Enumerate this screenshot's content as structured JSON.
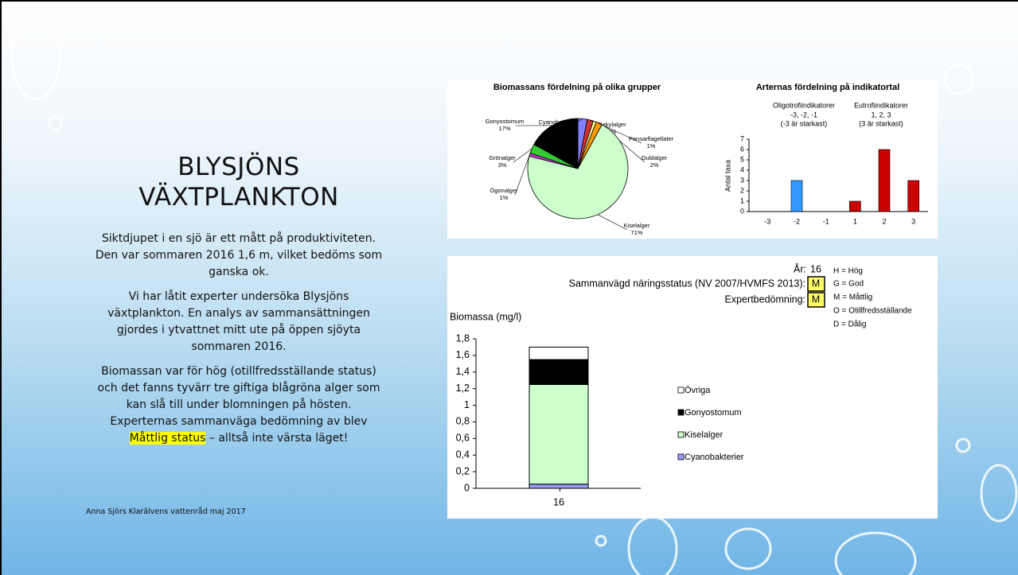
{
  "slide": {
    "title": [
      "BLYSJÖNS",
      "VÄXTPLANKTON"
    ],
    "paragraphs": [
      "Siktdjupet i en sjö är ett mått på produktiviteten. Den var sommaren 2016 1,6 m, vilket bedöms som ganska ok.",
      "Vi har låtit experter undersöka Blysjöns växtplankton. En analys av sammansättningen gjordes i ytvattnet mitt ute på öppen sjöyta sommaren 2016.",
      "Biomassan var för hög (otillfredsställande status) och det fanns tyvärr tre giftiga blågröna alger som kan slå till under blomningen på hösten. Experternas sammanväga bedömning av blev"
    ],
    "highlight": "Måttlig status",
    "closing": "– alltså inte värsta läget!",
    "footer": "Anna Sjörs Klarälvens vattenråd maj 2017"
  },
  "chart_data": [
    {
      "type": "pie",
      "title": "Biomassans fördelning på olika grupper",
      "categories": [
        "Cyanobakterier",
        "Rekylalger",
        "Pansarflagellater",
        "Guldalger",
        "Kiselalger",
        "Ögonalger",
        "Grönalger",
        "Gonyostomum"
      ],
      "values": [
        3,
        2,
        1,
        2,
        71,
        1,
        3,
        17
      ],
      "value_labels": [
        "3%",
        "2%",
        "1%",
        "2%",
        "71%",
        "1%",
        "3%",
        "17%"
      ],
      "colors": [
        "#8080ff",
        "#cc3333",
        "#ffff99",
        "#ff9900",
        "#ccffcc",
        "#cc33cc",
        "#33cc33",
        "#000000"
      ]
    },
    {
      "type": "bar",
      "title": "Arternas fördelning på indikatortal",
      "annotations": [
        "Oligotrofiindikatorer",
        "-3, -2, -1",
        "(-3 är starkast)",
        "Eutrofiindikatorer",
        "1, 2, 3",
        "(3 är starkast)"
      ],
      "y_label": "Antal taxa",
      "categories": [
        "-3",
        "-2",
        "-1",
        "1",
        "2",
        "3"
      ],
      "values": [
        0,
        3,
        0,
        1,
        6,
        3
      ],
      "colors": [
        "#3399ff",
        "#3399ff",
        "#3399ff",
        "#cc0000",
        "#cc0000",
        "#cc0000"
      ],
      "ylim": [
        0,
        7
      ],
      "yticks": [
        0,
        1,
        2,
        3,
        4,
        5,
        6,
        7
      ]
    },
    {
      "type": "stacked_bar",
      "y_label": "Biomassa (mg/l)",
      "annotations": [
        "År:",
        "16",
        "Sammanvägd näringsstatus (NV 2007/HVMFS 2013):",
        "M",
        "Expertbedömning:",
        "M",
        "H = Hög",
        "G = God",
        "M = Måttlig",
        "O = Otillfredsställande",
        "D = Dålig"
      ],
      "categories": [
        "16"
      ],
      "series": [
        {
          "name": "Cyanobakterier",
          "color": "#9999ff",
          "values": [
            0.05
          ]
        },
        {
          "name": "Kiselalger",
          "color": "#ccffcc",
          "values": [
            1.2
          ]
        },
        {
          "name": "Gonyostomum",
          "color": "#000000",
          "values": [
            0.3
          ]
        },
        {
          "name": "Övriga",
          "color": "#ffffff",
          "values": [
            0.15
          ]
        }
      ],
      "ylim": [
        0,
        1.8
      ],
      "yticks": [
        0,
        {
          "value": 0.2,
          "label": "0,2"
        },
        {
          "value": 0.4,
          "label": "0,4"
        },
        {
          "value": 0.6,
          "label": "0,6"
        },
        {
          "value": 0.8,
          "label": "0,8"
        },
        1,
        {
          "value": 1.2,
          "label": "1,2"
        },
        {
          "value": 1.4,
          "label": "1,4"
        },
        {
          "value": 1.6,
          "label": "1,6"
        },
        {
          "value": 1.8,
          "label": "1,8"
        }
      ]
    }
  ]
}
